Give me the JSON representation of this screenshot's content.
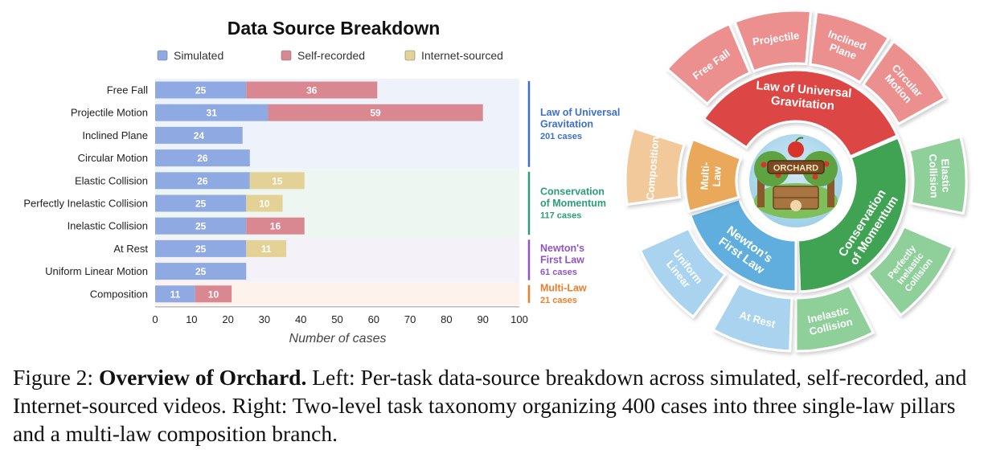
{
  "chart_data": {
    "type": "bar",
    "orientation": "horizontal",
    "stacked": true,
    "title": "Data Source Breakdown",
    "xlabel": "Number of cases",
    "ylabel": "",
    "xlim": [
      0,
      100
    ],
    "xticks": [
      0,
      10,
      20,
      30,
      40,
      50,
      60,
      70,
      80,
      90,
      100
    ],
    "legend_position": "top",
    "categories": [
      "Free Fall",
      "Projectile Motion",
      "Inclined Plane",
      "Circular Motion",
      "Elastic Collision",
      "Perfectly Inelastic Collision",
      "Inelastic Collision",
      "At Rest",
      "Uniform Linear Motion",
      "Composition"
    ],
    "series": [
      {
        "name": "Simulated",
        "color": "#8fa9e3",
        "values": [
          25,
          31,
          24,
          26,
          26,
          25,
          25,
          25,
          25,
          11
        ]
      },
      {
        "name": "Self-recorded",
        "color": "#d98891",
        "values": [
          36,
          59,
          0,
          0,
          0,
          0,
          16,
          0,
          0,
          10
        ]
      },
      {
        "name": "Internet-sourced",
        "color": "#e3d196",
        "values": [
          0,
          0,
          0,
          0,
          15,
          10,
          0,
          11,
          0,
          0
        ]
      }
    ],
    "groups": [
      {
        "name": "Law of Universal Gravitation",
        "lines": [
          "Law of Universal",
          "Gravitation"
        ],
        "count": "201 cases",
        "color": "#3d6fcf",
        "bg": "#eef3fb",
        "start": 0,
        "end": 3
      },
      {
        "name": "Conservation of Momentum",
        "lines": [
          "Conservation",
          "of Momentum"
        ],
        "count": "117 cases",
        "color": "#2a9d7a",
        "bg": "#edf6f1",
        "start": 4,
        "end": 6
      },
      {
        "name": "Newton's First Law",
        "lines": [
          "Newton's",
          "First Law"
        ],
        "count": "61 cases",
        "color": "#8e56c2",
        "bg": "#f4f1f9",
        "start": 7,
        "end": 8
      },
      {
        "name": "Multi-Law",
        "lines": [
          "Multi-Law"
        ],
        "count": "21 cases",
        "color": "#ee7d2a",
        "bg": "#fdf3ec",
        "start": 9,
        "end": 9
      }
    ]
  },
  "taxonomy": {
    "center_logo_text": "ORCHARD",
    "pillars": [
      {
        "name": "Law of Universal Gravitation",
        "lines": [
          "Law of Universal",
          "Gravitation"
        ],
        "color": "#dc4744",
        "children": [
          {
            "lines": [
              "Free Fall"
            ],
            "color": "#eb8f8f"
          },
          {
            "lines": [
              "Projectile"
            ],
            "color": "#eb8f8f"
          },
          {
            "lines": [
              "Inclined",
              "Plane"
            ],
            "color": "#eb8f8f"
          },
          {
            "lines": [
              "Circular",
              "Motion"
            ],
            "color": "#eb8f8f"
          }
        ]
      },
      {
        "name": "Conservation of Momentum",
        "lines": [
          "Conservation",
          "of Momentum"
        ],
        "color": "#3fa353",
        "children": [
          {
            "lines": [
              "Elastic",
              "Collision"
            ],
            "color": "#8fcf99"
          },
          {
            "lines": [
              "Perfectly",
              "Inelastic",
              "Collision"
            ],
            "color": "#8fcf99"
          },
          {
            "lines": [
              "Inelastic",
              "Collision"
            ],
            "color": "#8fcf99"
          }
        ]
      },
      {
        "name": "Newton's First Law",
        "lines": [
          "Newton's",
          "First Law"
        ],
        "color": "#5eaede",
        "children": [
          {
            "lines": [
              "At Rest"
            ],
            "color": "#a9d3ee"
          },
          {
            "lines": [
              "Uniform",
              "Linear"
            ],
            "color": "#a9d3ee"
          }
        ]
      },
      {
        "name": "Multi-Law",
        "lines": [
          "Multi-",
          "Law"
        ],
        "color": "#e9a85a",
        "children": [
          {
            "lines": [
              "Composition"
            ],
            "color": "#f2c99a"
          }
        ]
      }
    ]
  },
  "caption": {
    "label": "Figure 2:",
    "title": "Overview of Orchard.",
    "text": "Left: Per-task data-source breakdown across simulated, self-recorded, and Internet-sourced videos. Right: Two-level task taxonomy organizing 400 cases into three single-law pillars and a multi-law composition branch."
  }
}
